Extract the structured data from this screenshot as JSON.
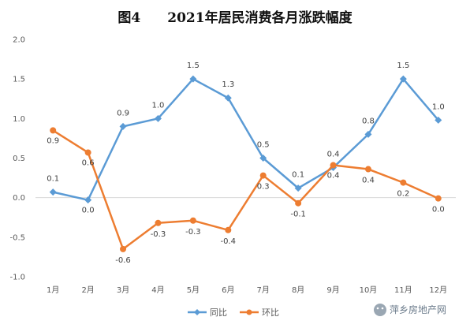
{
  "chart_data": {
    "type": "line",
    "title": "图4　　2021年居民消费各月涨跌幅度",
    "categories": [
      "1月",
      "2月",
      "3月",
      "4月",
      "5月",
      "6月",
      "7月",
      "8月",
      "9月",
      "10月",
      "11月",
      "12月"
    ],
    "ylim": [
      -1.0,
      2.0
    ],
    "yticks": [
      "2.0",
      "1.5",
      "1.0",
      "0.5",
      "0.0",
      "-0.5",
      "-1.0"
    ],
    "grid": false,
    "legend_position": "bottom",
    "series": [
      {
        "name": "同比",
        "color": "#5B9BD5",
        "marker": "diamond",
        "values": [
          0.07,
          -0.03,
          0.9,
          1.0,
          1.5,
          1.26,
          0.5,
          0.12,
          0.38,
          0.8,
          1.5,
          0.98
        ],
        "labels": [
          "0.1",
          "0.0",
          "0.9",
          "1.0",
          "1.5",
          "1.3",
          "0.5",
          "0.1",
          "0.4",
          "0.8",
          "1.5",
          "1.0"
        ]
      },
      {
        "name": "环比",
        "color": "#ED7D31",
        "marker": "circle",
        "values": [
          0.85,
          0.57,
          -0.65,
          -0.32,
          -0.29,
          -0.41,
          0.28,
          -0.07,
          0.41,
          0.36,
          0.19,
          -0.01
        ],
        "labels": [
          "0.9",
          "0.6",
          "-0.6",
          "-0.3",
          "-0.3",
          "-0.4",
          "0.3",
          "-0.1",
          "0.4",
          "0.4",
          "0.2",
          "0.0"
        ]
      }
    ]
  },
  "watermark": {
    "text": "萍乡房地产网",
    "icon": "wechat-icon"
  }
}
